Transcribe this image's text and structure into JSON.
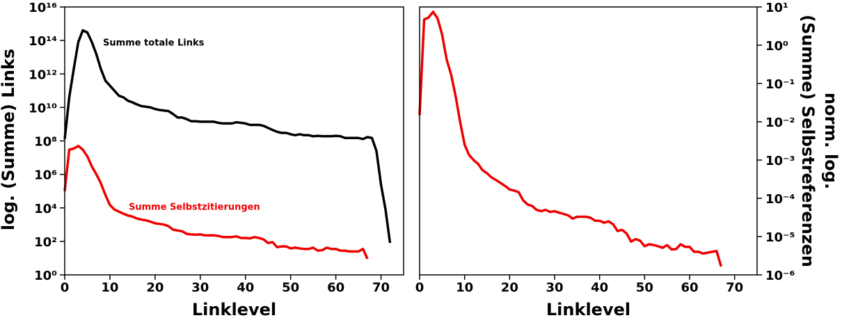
{
  "chart_data": [
    {
      "type": "line",
      "xlabel": "Linklevel",
      "ylabel": "log. (Summe) Links",
      "y_axis_side": "left",
      "ylog": true,
      "xlim": [
        0,
        75
      ],
      "xticks": [
        0,
        10,
        20,
        30,
        40,
        50,
        60,
        70
      ],
      "ylim": [
        1,
        1e+16
      ],
      "yticks": [
        {
          "value": 1,
          "label": "10⁰"
        },
        {
          "value": 100,
          "label": "10²"
        },
        {
          "value": 10000,
          "label": "10⁴"
        },
        {
          "value": 1000000.0,
          "label": "10⁶"
        },
        {
          "value": 100000000.0,
          "label": "10⁸"
        },
        {
          "value": 10000000000.0,
          "label": "10¹⁰"
        },
        {
          "value": 1000000000000.0,
          "label": "10¹²"
        },
        {
          "value": 100000000000000.0,
          "label": "10¹⁴"
        },
        {
          "value": 1e+16,
          "label": "10¹⁶"
        }
      ],
      "series": [
        {
          "name": "Summe totale Links",
          "color": "#000000",
          "x": [
            0,
            1,
            2,
            3,
            4,
            5,
            6,
            7,
            8,
            9,
            10,
            11,
            12,
            13,
            14,
            15,
            16,
            17,
            18,
            19,
            20,
            21,
            22,
            23,
            24,
            25,
            26,
            27,
            28,
            29,
            30,
            31,
            32,
            33,
            34,
            35,
            36,
            37,
            38,
            39,
            40,
            41,
            42,
            43,
            44,
            45,
            46,
            47,
            48,
            49,
            50,
            51,
            52,
            53,
            54,
            55,
            56,
            57,
            58,
            59,
            60,
            61,
            62,
            63,
            64,
            65,
            66,
            67,
            68,
            69,
            70,
            71,
            72
          ],
          "values": [
            130000000.0,
            40000000000.0,
            2000000000000.0,
            80000000000000.0,
            400000000000000.0,
            300000000000000.0,
            80000000000000.0,
            15000000000000.0,
            2000000000000.0,
            400000000000.0,
            200000000000.0,
            100000000000.0,
            50000000000.0,
            40000000000.0,
            25000000000.0,
            20000000000.0,
            15000000000.0,
            12000000000.0,
            11000000000.0,
            10000000000.0,
            8000000000.0,
            7000000000.0,
            6500000000.0,
            6000000000.0,
            4000000000.0,
            2500000000.0,
            2500000000.0,
            2000000000.0,
            1500000000.0,
            1500000000.0,
            1400000000.0,
            1400000000.0,
            1400000000.0,
            1400000000.0,
            1200000000.0,
            1100000000.0,
            1100000000.0,
            1100000000.0,
            1300000000.0,
            1200000000.0,
            1100000000.0,
            900000000.0,
            900000000.0,
            900000000.0,
            800000000.0,
            600000000.0,
            450000000.0,
            350000000.0,
            300000000.0,
            300000000.0,
            250000000.0,
            220000000.0,
            250000000.0,
            220000000.0,
            220000000.0,
            190000000.0,
            200000000.0,
            190000000.0,
            190000000.0,
            190000000.0,
            200000000.0,
            190000000.0,
            150000000.0,
            150000000.0,
            150000000.0,
            150000000.0,
            130000000.0,
            170000000.0,
            150000000.0,
            25000000.0,
            250000.0,
            8000.0,
            80
          ]
        },
        {
          "name": "Summe Selbstzitierungen",
          "color": "#ee0000",
          "x": [
            0,
            1,
            2,
            3,
            4,
            5,
            6,
            7,
            8,
            9,
            10,
            11,
            12,
            13,
            14,
            15,
            16,
            17,
            18,
            19,
            20,
            21,
            22,
            23,
            24,
            25,
            26,
            27,
            28,
            29,
            30,
            31,
            32,
            33,
            34,
            35,
            36,
            37,
            38,
            39,
            40,
            41,
            42,
            43,
            44,
            45,
            46,
            47,
            48,
            49,
            50,
            51,
            52,
            53,
            54,
            55,
            56,
            57,
            58,
            59,
            60,
            61,
            62,
            63,
            64,
            65,
            66,
            67
          ],
          "values": [
            100000.0,
            30000000.0,
            35000000.0,
            50000000.0,
            30000000.0,
            12000000.0,
            3000000.0,
            1000000.0,
            300000.0,
            60000.0,
            15000.0,
            8000.0,
            6000.0,
            4500.0,
            3500.0,
            3000.0,
            2300.0,
            2000.0,
            1800.0,
            1500.0,
            1200.0,
            1100.0,
            1000.0,
            800,
            500,
            450,
            400,
            280,
            260,
            250,
            260,
            230,
            230,
            230,
            210,
            180,
            180,
            180,
            200,
            160,
            160,
            150,
            180,
            160,
            130,
            80,
            90,
            45,
            50,
            50,
            38,
            42,
            38,
            35,
            35,
            42,
            28,
            30,
            42,
            35,
            35,
            28,
            28,
            25,
            25,
            25,
            35,
            9
          ]
        }
      ]
    },
    {
      "type": "line",
      "xlabel": "Linklevel",
      "ylabel": [
        "norm. log.",
        "(Summe) Selbstreferenzen"
      ],
      "y_axis_side": "right",
      "ylog": true,
      "xlim": [
        0,
        75
      ],
      "xticks": [
        0,
        10,
        20,
        30,
        40,
        50,
        60,
        70
      ],
      "ylim": [
        1e-06,
        10
      ],
      "yticks": [
        {
          "value": 1e-06,
          "label": "10⁻⁶"
        },
        {
          "value": 1e-05,
          "label": "10⁻⁵"
        },
        {
          "value": 0.0001,
          "label": "10⁻⁴"
        },
        {
          "value": 0.001,
          "label": "10⁻³"
        },
        {
          "value": 0.01,
          "label": "10⁻²"
        },
        {
          "value": 0.1,
          "label": "10⁻¹"
        },
        {
          "value": 1,
          "label": "10⁰"
        },
        {
          "value": 10,
          "label": "10¹"
        }
      ],
      "series": [
        {
          "color": "#ee0000",
          "x": [
            0,
            1,
            2,
            3,
            4,
            5,
            6,
            7,
            8,
            9,
            10,
            11,
            12,
            13,
            14,
            15,
            16,
            17,
            18,
            19,
            20,
            21,
            22,
            23,
            24,
            25,
            26,
            27,
            28,
            29,
            30,
            31,
            32,
            33,
            34,
            35,
            36,
            37,
            38,
            39,
            40,
            41,
            42,
            43,
            44,
            45,
            46,
            47,
            48,
            49,
            50,
            51,
            52,
            53,
            54,
            55,
            56,
            57,
            58,
            59,
            60,
            61,
            62,
            63,
            64,
            65,
            66,
            67
          ],
          "values": [
            0.015,
            4.7,
            5.3,
            7.5,
            5,
            1.9,
            0.43,
            0.17,
            0.047,
            0.01,
            0.0025,
            0.00135,
            0.001,
            0.00079,
            0.00054,
            0.00045,
            0.00035,
            0.0003,
            0.00025,
            0.00021,
            0.00017,
            0.00016,
            0.000145,
            8.9e-05,
            6.9e-05,
            6.3e-05,
            5e-05,
            4.6e-05,
            5e-05,
            4.4e-05,
            4.6e-05,
            4.2e-05,
            3.9e-05,
            3.6e-05,
            2.95e-05,
            3.3e-05,
            3.3e-05,
            3.3e-05,
            3.1e-05,
            2.6e-05,
            2.6e-05,
            2.3e-05,
            2.5e-05,
            2.1e-05,
            1.4e-05,
            1.5e-05,
            1.2e-05,
            7.4e-06,
            8.6e-06,
            7.8e-06,
            5.6e-06,
            6.3e-06,
            6e-06,
            5.6e-06,
            5.1e-06,
            6e-06,
            4.6e-06,
            4.7e-06,
            6.3e-06,
            5.4e-06,
            5.4e-06,
            4e-06,
            4e-06,
            3.6e-06,
            3.8e-06,
            4e-06,
            4.2e-06,
            1.65e-06
          ]
        }
      ]
    }
  ]
}
